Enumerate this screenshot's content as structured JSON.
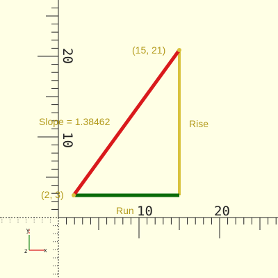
{
  "colors": {
    "background": "#ffffe5",
    "axis": "#222222",
    "hypotenuse": "#d9191c",
    "run": "#0a6b0a",
    "rise": "#d8c23c",
    "label": "#b39b1c"
  },
  "points": {
    "start": {
      "x": 2,
      "y": 3,
      "label": "(2, 3)"
    },
    "end": {
      "x": 15,
      "y": 21,
      "label": "(15, 21)"
    }
  },
  "labels": {
    "slope": "Slope = 1.38462",
    "rise": "Rise",
    "run": "Run"
  },
  "axis_ticks": {
    "x": [
      "10",
      "20"
    ],
    "y": [
      "10",
      "20"
    ]
  },
  "axis_gizmo": {
    "x": "x",
    "y": "y",
    "z": "z"
  }
}
